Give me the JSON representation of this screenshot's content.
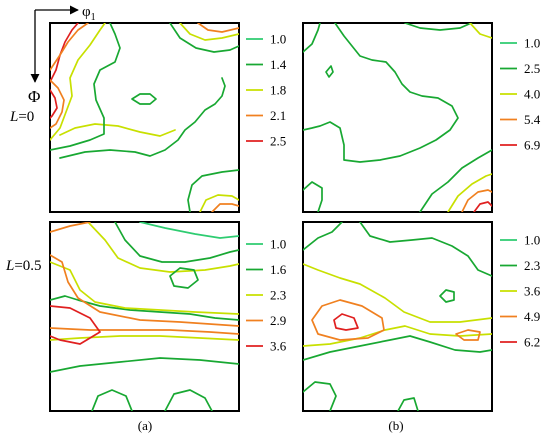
{
  "axes": {
    "x_label": "φ",
    "x_subscript": "1",
    "y_label": "Φ"
  },
  "row_labels": [
    {
      "var": "L",
      "rest": "=0"
    },
    {
      "var": "L",
      "rest": "=0.5"
    }
  ],
  "captions": [
    "(a)",
    "(b)"
  ],
  "chart_data": {
    "type": "contour",
    "panels": [
      {
        "id": "a-top",
        "column": "(a)",
        "row": "L=0",
        "levels": [
          "1.0",
          "1.4",
          "1.8",
          "2.1",
          "2.5"
        ]
      },
      {
        "id": "b-top",
        "column": "(b)",
        "row": "L=0",
        "levels": [
          "1.0",
          "2.5",
          "4.0",
          "5.4",
          "6.9"
        ]
      },
      {
        "id": "a-bot",
        "column": "(a)",
        "row": "L=0.5",
        "levels": [
          "1.0",
          "1.6",
          "2.3",
          "2.9",
          "3.6"
        ]
      },
      {
        "id": "b-bot",
        "column": "(b)",
        "row": "L=0.5",
        "levels": [
          "1.0",
          "2.3",
          "3.6",
          "4.9",
          "6.2"
        ]
      }
    ]
  },
  "level_colors": [
    "#2ecc71",
    "#18a832",
    "#c8e000",
    "#f08020",
    "#e02020"
  ]
}
